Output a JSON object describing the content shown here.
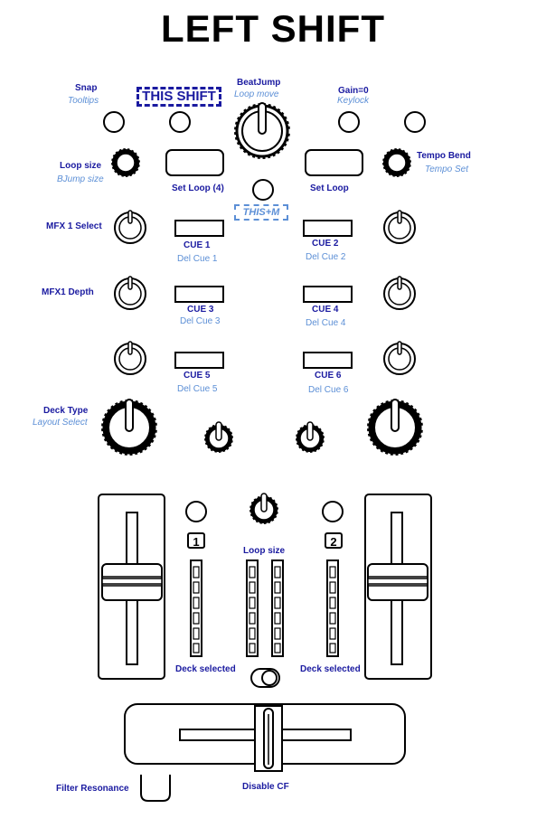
{
  "title": "LEFT SHIFT",
  "labels": {
    "snap": "Snap",
    "tooltips": "Tooltips",
    "this_shift": "THIS SHIFT",
    "beatjump": "BeatJump",
    "loop_move": "Loop move",
    "gain0": "Gain=0",
    "keylock": "Keylock",
    "loop_size_left": "Loop size",
    "bjump_size": "BJump size",
    "tempo_bend": "Tempo Bend",
    "tempo_set": "Tempo Set",
    "set_loop_4": "Set Loop (4)",
    "set_loop": "Set Loop",
    "this_m": "THIS+M",
    "mfx1_select": "MFX 1 Select",
    "mfx1_depth": "MFX1 Depth",
    "cue1": "CUE 1",
    "del_cue1": "Del Cue  1",
    "cue2": "CUE 2",
    "del_cue2": "Del Cue  2",
    "cue3": "CUE 3",
    "del_cue3": "Del Cue  3",
    "cue4": "CUE 4",
    "del_cue4": "Del Cue  4",
    "cue5": "CUE 5",
    "del_cue5": "Del Cue  5",
    "cue6": "CUE 6",
    "del_cue6": "Del Cue  6",
    "deck_type": "Deck Type",
    "layout_select": "Layout Select",
    "loop_size_mid": "Loop size",
    "deck_selected_left": "Deck selected",
    "deck_selected_right": "Deck selected",
    "filter_resonance": "Filter Resonance",
    "disable_cf": "Disable CF",
    "deck1": "1",
    "deck2": "2"
  },
  "colors": {
    "primary_label": "#1a1aa0",
    "secondary_label": "#5c8fd6",
    "outline": "#000000"
  }
}
